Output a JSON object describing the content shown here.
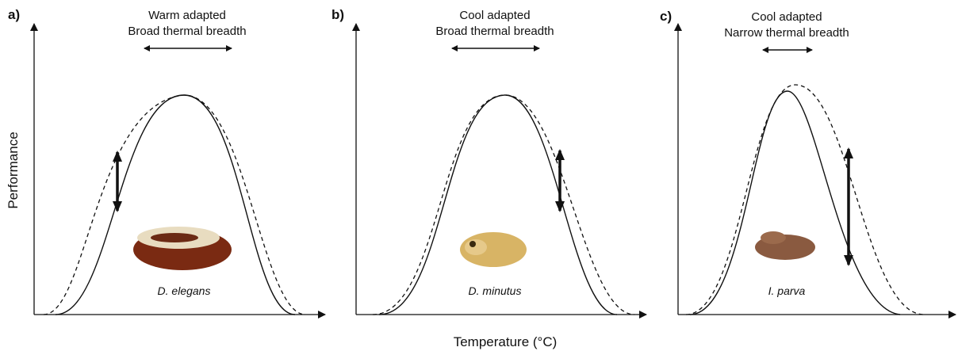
{
  "panels": [
    {
      "label": "a)",
      "title": [
        "Warm adapted",
        "Broad thermal breadth"
      ],
      "species": "D. elegans"
    },
    {
      "label": "b)",
      "title": [
        "Cool adapted",
        "Broad thermal breadth"
      ],
      "species": "D. minutus"
    },
    {
      "label": "c)",
      "title": [
        "Cool adapted",
        "Narrow thermal breadth"
      ],
      "species": "I. parva"
    }
  ],
  "axes": {
    "y_label": "Performance",
    "x_label": "Temperature (°C)"
  }
}
